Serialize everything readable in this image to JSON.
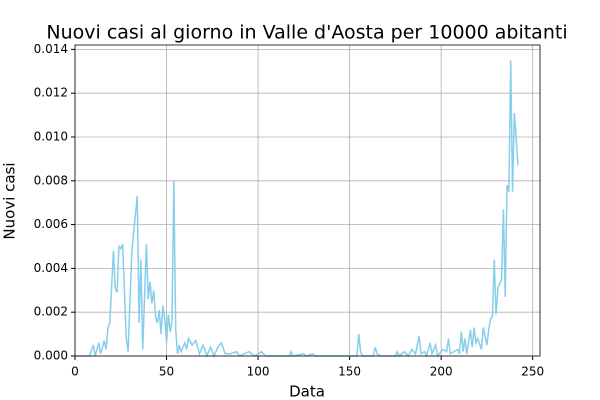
{
  "chart_data": {
    "type": "line",
    "title": "Nuovi casi al giorno in Valle d'Aosta per 10000 abitanti",
    "xlabel": "Data",
    "ylabel": "Nuovi casi",
    "grid": true,
    "xlim": [
      0,
      254
    ],
    "ylim": [
      0,
      0.0142
    ],
    "xticks": [
      0,
      50,
      100,
      150,
      200,
      250
    ],
    "yticks": [
      {
        "value": 0,
        "label": "0.000"
      },
      {
        "value": 0.002,
        "label": "0.002"
      },
      {
        "value": 0.004,
        "label": "0.004"
      },
      {
        "value": 0.006,
        "label": "0.006"
      },
      {
        "value": 0.008,
        "label": "0.008"
      },
      {
        "value": 0.01,
        "label": "0.010"
      },
      {
        "value": 0.012,
        "label": "0.012"
      },
      {
        "value": 0.014,
        "label": "0.014"
      }
    ],
    "series": [
      {
        "color": "#87ceeb",
        "x": [
          0,
          8,
          10,
          11,
          13,
          14,
          16,
          17,
          18,
          19,
          21,
          22,
          23,
          24,
          25,
          26,
          27,
          28,
          29,
          31,
          32,
          34,
          35,
          36,
          37,
          39,
          40,
          41,
          42,
          43,
          44,
          45,
          46,
          47,
          48,
          49,
          50,
          51,
          52,
          53,
          54,
          55,
          56,
          57,
          58,
          60,
          61,
          62,
          64,
          66,
          68,
          70,
          72,
          74,
          76,
          78,
          80,
          82,
          85,
          88,
          90,
          95,
          98,
          102,
          104,
          117,
          118,
          119,
          125,
          126,
          130,
          131,
          154,
          155,
          156,
          157,
          163,
          164,
          165,
          167,
          175,
          176,
          177,
          180,
          182,
          184,
          186,
          188,
          189,
          191,
          192,
          194,
          195,
          197,
          198,
          201,
          203,
          204,
          205,
          207,
          209,
          210,
          211,
          212,
          213,
          214,
          216,
          217,
          218,
          219,
          220,
          222,
          223,
          225,
          226,
          227,
          228,
          229,
          230,
          231,
          232,
          233,
          234,
          235,
          236,
          237,
          238,
          239,
          240,
          242
        ],
        "values": [
          0,
          0,
          0.0005,
          0,
          0.0006,
          0.0001,
          0.0007,
          0.0003,
          0.0013,
          0.0015,
          0.0048,
          0.0031,
          0.0029,
          0.005,
          0.0049,
          0.0051,
          0.003,
          0.0008,
          0.0002,
          0.0047,
          0.0056,
          0.0073,
          0.0015,
          0.0044,
          0.0003,
          0.0051,
          0.0026,
          0.0034,
          0.0024,
          0.003,
          0.0018,
          0.0015,
          0.0021,
          0.001,
          0.0023,
          0.0017,
          0.0006,
          0.0019,
          0.0011,
          0.0016,
          0.008,
          0.0012,
          0.0001,
          0.0005,
          0.0002,
          0.0006,
          0.0003,
          0.0008,
          0.0005,
          0.0007,
          0.0001,
          0.0005,
          0,
          0.0004,
          0,
          0.0004,
          0.0006,
          0.0001,
          0.0001,
          0.0002,
          0,
          0.0002,
          0,
          0.0002,
          0,
          0,
          0.0002,
          0,
          0.0001,
          0,
          0.0001,
          0,
          0,
          0.001,
          0.0002,
          0,
          0,
          0.0004,
          0.0001,
          0,
          0,
          0.0002,
          0,
          0.0002,
          0,
          0.0003,
          0.0001,
          0.0009,
          0.0001,
          0.0002,
          0,
          0.0006,
          0.0001,
          0.0005,
          0,
          0.0003,
          0.0002,
          0.0008,
          0.0001,
          0.0002,
          0.0003,
          0.0001,
          0.0011,
          0.0002,
          0.0008,
          0.0001,
          0.0012,
          0.0004,
          0.0013,
          0.0006,
          0.0008,
          0.0003,
          0.0013,
          0.0005,
          0.0012,
          0.0017,
          0.0018,
          0.0044,
          0.0019,
          0.0031,
          0.0033,
          0.0035,
          0.0067,
          0.0027,
          0.0078,
          0.0075,
          0.0135,
          0.0075,
          0.0111,
          0.0087
        ]
      }
    ]
  }
}
